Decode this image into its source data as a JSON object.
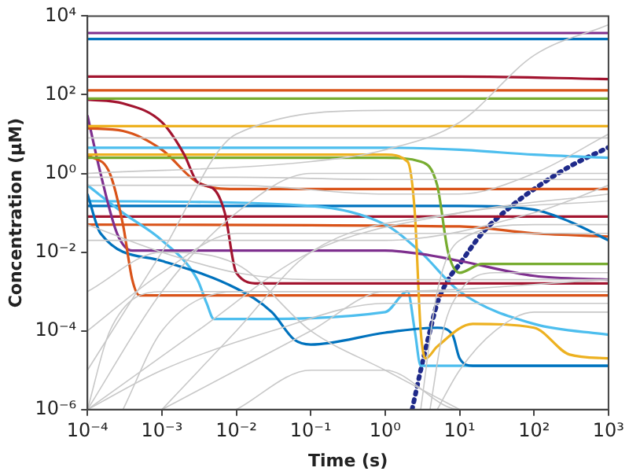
{
  "chart_data": {
    "type": "line",
    "xlabel": "Time (s)",
    "ylabel": "Concentration (μM)",
    "log": "xy",
    "grid": false,
    "legend": false,
    "marker": "none",
    "line_style": "solid",
    "xlim": [
      0.0001,
      1000
    ],
    "ylim": [
      1e-06,
      10000
    ],
    "xticks": [
      {
        "value": 0.0001,
        "label": "10⁻⁴"
      },
      {
        "value": 0.001,
        "label": "10⁻³"
      },
      {
        "value": 0.01,
        "label": "10⁻²"
      },
      {
        "value": 0.1,
        "label": "10⁻¹"
      },
      {
        "value": 1,
        "label": "10⁰"
      },
      {
        "value": 10,
        "label": "10¹"
      },
      {
        "value": 100,
        "label": "10²"
      },
      {
        "value": 1000,
        "label": "10³"
      }
    ],
    "yticks": [
      {
        "value": 1e-06,
        "label": "10⁻⁶"
      },
      {
        "value": 0.0001,
        "label": "10⁻⁴"
      },
      {
        "value": 0.01,
        "label": "10⁻²"
      },
      {
        "value": 1,
        "label": "10⁰"
      },
      {
        "value": 100,
        "label": "10²"
      },
      {
        "value": 10000,
        "label": "10⁴"
      }
    ],
    "series": [
      {
        "color": "#c8c8c8",
        "x": [
          0.0001,
          0.1,
          1,
          10,
          100,
          1000
        ],
        "values": [
          1,
          2,
          4,
          20,
          1000,
          6000
        ]
      },
      {
        "color": "#c8c8c8",
        "x": [
          0.0001,
          0.001,
          0.01,
          0.1,
          1000
        ],
        "values": [
          1e-06,
          0.001,
          0.1,
          1,
          1
        ]
      },
      {
        "color": "#c8c8c8",
        "x": [
          0.0001,
          0.001,
          0.01,
          1,
          1000
        ],
        "values": [
          1e-05,
          0.01,
          10,
          40,
          40
        ]
      },
      {
        "color": "#c8c8c8",
        "x": [
          0.0001,
          0.003,
          0.1,
          10,
          1000
        ],
        "values": [
          1e-06,
          0.0001,
          0.01,
          0.1,
          0.3
        ]
      },
      {
        "color": "#c8c8c8",
        "x": [
          0.0003,
          0.001,
          0.01,
          1,
          1000
        ],
        "values": [
          1e-06,
          0.0001,
          0.001,
          0.001,
          0.002
        ]
      },
      {
        "color": "#c8c8c8",
        "x": [
          0.0001,
          0.001,
          0.01,
          0.1,
          1,
          10
        ],
        "values": [
          0.001,
          0.01,
          0.005,
          0.0001,
          1e-05,
          1e-06
        ]
      },
      {
        "color": "#c8c8c8",
        "x": [
          0.001,
          0.01,
          0.1,
          1,
          1000
        ],
        "values": [
          1e-06,
          1e-05,
          0.0001,
          0.001,
          0.001
        ]
      },
      {
        "color": "#c8c8c8",
        "x": [
          4,
          6,
          10,
          30,
          1000
        ],
        "values": [
          1e-06,
          0.0001,
          0.001,
          0.003,
          0.003
        ]
      },
      {
        "color": "#c8c8c8",
        "x": [
          5,
          10,
          30,
          100,
          1000
        ],
        "values": [
          1e-06,
          1e-05,
          0.0001,
          0.0003,
          0.0003
        ]
      },
      {
        "color": "#c8c8c8",
        "x": [
          0.0001,
          0.01,
          1,
          10,
          100,
          1000
        ],
        "values": [
          0.5,
          0.5,
          0.3,
          0.3,
          1,
          10
        ]
      },
      {
        "color": "#c8c8c8",
        "x": [
          0.0001,
          0.01,
          1,
          100,
          1000
        ],
        "values": [
          0.02,
          0.02,
          0.02,
          0.1,
          0.5
        ]
      },
      {
        "color": "#c8c8c8",
        "x": [
          0.0001,
          0.001,
          0.01,
          0.1,
          1000
        ],
        "values": [
          0.0001,
          0.003,
          0.03,
          0.03,
          0.03
        ]
      },
      {
        "color": "#c8c8c8",
        "x": [
          0.0001,
          0.0002,
          0.001,
          0.01,
          1000
        ],
        "values": [
          1e-06,
          0.0001,
          0.001,
          0.001,
          0.001
        ]
      },
      {
        "color": "#c8c8c8",
        "x": [
          0.01,
          0.1,
          1,
          10,
          1000
        ],
        "values": [
          1e-06,
          1e-05,
          1e-05,
          1e-06,
          1e-06
        ]
      },
      {
        "color": "#c8c8c8",
        "x": [
          0.0001,
          0.001,
          0.03,
          1,
          1000
        ],
        "values": [
          1e-06,
          1e-05,
          0.0001,
          0.0005,
          0.0005
        ]
      },
      {
        "color": "#c8c8c8",
        "x": [
          3,
          5,
          10,
          100,
          1000
        ],
        "values": [
          1e-06,
          0.001,
          0.02,
          0.05,
          0.05
        ]
      },
      {
        "color": "#c8c8c8",
        "x": [
          0.0001,
          0.001,
          0.01,
          0.1,
          1,
          1000
        ],
        "values": [
          0.05,
          0.01,
          0.003,
          0.002,
          0.002,
          0.002
        ]
      },
      {
        "color": "#c8c8c8",
        "x": [
          0.0001,
          0.01,
          1,
          1000
        ],
        "values": [
          8,
          8,
          8,
          8
        ]
      },
      {
        "color": "#c8c8c8",
        "x": [
          0.0001,
          0.01,
          1,
          1000
        ],
        "values": [
          0.8,
          0.8,
          0.7,
          0.7
        ]
      },
      {
        "color": "#c8c8c8",
        "x": [
          0.001,
          0.01,
          0.1,
          10,
          1000
        ],
        "values": [
          1e-06,
          0.0001,
          0.01,
          0.1,
          0.2
        ]
      },
      {
        "color": "#7e2f8e",
        "x": [
          0.0001,
          1000
        ],
        "values": [
          3700,
          3700
        ]
      },
      {
        "color": "#0072bd",
        "x": [
          0.0001,
          1000
        ],
        "values": [
          2600,
          2600
        ]
      },
      {
        "color": "#a2142f",
        "x": [
          0.0001,
          10,
          1000
        ],
        "values": [
          290,
          290,
          250
        ]
      },
      {
        "color": "#d95319",
        "x": [
          0.0001,
          1000
        ],
        "values": [
          130,
          130
        ]
      },
      {
        "color": "#77ac30",
        "x": [
          0.0001,
          1000
        ],
        "values": [
          80,
          80
        ]
      },
      {
        "color": "#edb120",
        "x": [
          0.0001,
          1000
        ],
        "values": [
          16,
          16
        ]
      },
      {
        "color": "#a2142f",
        "x": [
          0.0001,
          0.0003,
          0.001,
          0.002,
          0.003,
          0.005,
          0.007,
          0.01,
          0.02,
          1000
        ],
        "values": [
          75,
          60,
          20,
          3,
          0.6,
          0.4,
          0.1,
          0.003,
          0.0016,
          0.0016
        ]
      },
      {
        "color": "#4dbeee",
        "x": [
          0.0001,
          1,
          10,
          100,
          1000
        ],
        "values": [
          4.5,
          4.5,
          4,
          3,
          2.5
        ]
      },
      {
        "color": "#edb120",
        "x": [
          0.0001,
          1,
          2,
          2.5,
          3,
          3.5,
          5,
          15,
          100,
          300,
          1000
        ],
        "values": [
          3,
          3,
          2,
          0.1,
          0.0001,
          2e-05,
          4e-05,
          0.00015,
          0.00012,
          2.5e-05,
          2e-05
        ]
      },
      {
        "color": "#77ac30",
        "x": [
          0.0001,
          1,
          3,
          5,
          7,
          10,
          20,
          1000
        ],
        "values": [
          2.5,
          2.5,
          2,
          0.5,
          0.01,
          0.003,
          0.005,
          0.005
        ]
      },
      {
        "color": "#d95319",
        "x": [
          0.0001,
          0.0003,
          0.001,
          0.003,
          0.01,
          1000
        ],
        "values": [
          14,
          12,
          4,
          0.6,
          0.4,
          0.4
        ]
      },
      {
        "color": "#d95319",
        "x": [
          0.0001,
          0.0002,
          0.0003,
          0.0004,
          0.0005,
          1000
        ],
        "values": [
          3,
          1,
          0.05,
          0.002,
          0.0008,
          0.0008
        ]
      },
      {
        "color": "#7e2f8e",
        "x": [
          0.0001,
          0.00015,
          0.00025,
          0.0004,
          1,
          3,
          10,
          100,
          1000
        ],
        "values": [
          30,
          1,
          0.03,
          0.011,
          0.011,
          0.009,
          0.006,
          0.0025,
          0.002
        ]
      },
      {
        "color": "#0072bd",
        "x": [
          0.0001,
          0.00015,
          0.001,
          0.01,
          0.03,
          0.06,
          0.1,
          1,
          5,
          8,
          10,
          15,
          1000
        ],
        "values": [
          0.3,
          0.03,
          0.006,
          0.0012,
          0.0003,
          6e-05,
          4.5e-05,
          9e-05,
          0.00012,
          8e-05,
          2e-05,
          1.3e-05,
          1.3e-05
        ]
      },
      {
        "color": "#4dbeee",
        "x": [
          0.0001,
          0.0003,
          0.001,
          0.003,
          0.004,
          0.005,
          0.01,
          1,
          2,
          2.5,
          3,
          1000
        ],
        "values": [
          0.5,
          0.1,
          0.02,
          0.002,
          0.0005,
          0.0002,
          0.0002,
          0.0003,
          0.001,
          0.0001,
          1.3e-05,
          1.3e-05
        ]
      },
      {
        "color": "#4dbeee",
        "x": [
          0.0001,
          0.1,
          1,
          3,
          10,
          100,
          1000
        ],
        "values": [
          0.2,
          0.15,
          0.05,
          0.01,
          0.001,
          0.00015,
          8e-05
        ]
      },
      {
        "color": "#0072bd",
        "x": [
          0.0001,
          10,
          100,
          300,
          1000
        ],
        "values": [
          0.15,
          0.15,
          0.12,
          0.06,
          0.02
        ]
      },
      {
        "color": "#a2142f",
        "x": [
          0.0001,
          1000
        ],
        "values": [
          0.08,
          0.08
        ]
      },
      {
        "color": "#d95319",
        "x": [
          0.0001,
          10,
          100,
          1000
        ],
        "values": [
          0.05,
          0.045,
          0.03,
          0.025
        ]
      },
      {
        "color": "#1f2a8a",
        "line_style": "dotted",
        "x": [
          2.3,
          3,
          4,
          5,
          7,
          10,
          20,
          50,
          100,
          300,
          1000
        ],
        "values": [
          1e-06,
          1e-05,
          0.0001,
          0.0005,
          0.002,
          0.005,
          0.03,
          0.15,
          0.4,
          1.5,
          4.6
        ]
      }
    ]
  }
}
